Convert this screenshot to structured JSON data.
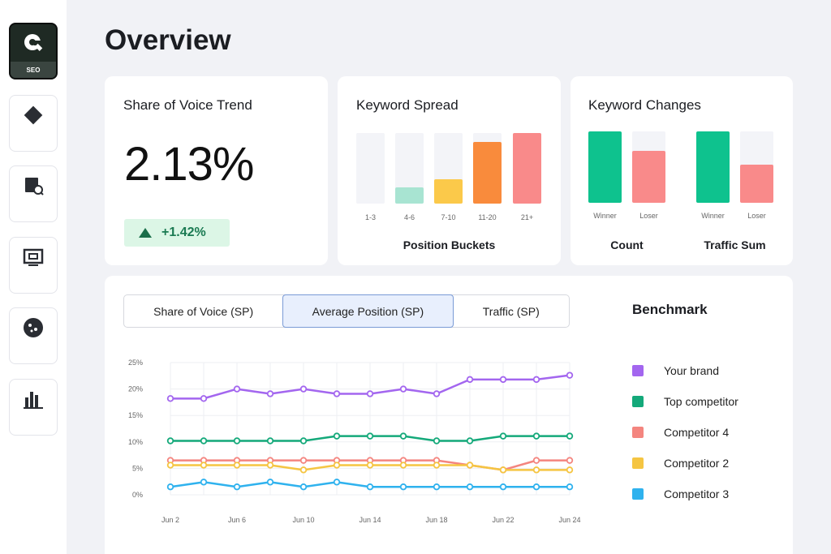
{
  "sidebar": {
    "items": [
      {
        "label": "SEO",
        "icon": "seo-logo-icon",
        "active": true
      },
      {
        "label": "",
        "icon": "diamond-icon"
      },
      {
        "label": "",
        "icon": "search-doc-icon"
      },
      {
        "label": "",
        "icon": "monitor-icon"
      },
      {
        "label": "",
        "icon": "globe-icon"
      },
      {
        "label": "",
        "icon": "bar-chart-icon"
      }
    ]
  },
  "page": {
    "title": "Overview"
  },
  "share_card": {
    "title": "Share of Voice Trend",
    "value": "2.13%",
    "delta": "+1.42%"
  },
  "spread_card": {
    "title": "Keyword Spread",
    "group_label": "Position Buckets",
    "buckets": [
      {
        "label": "1-3",
        "fill": 0.0,
        "color": "#f3f4f8"
      },
      {
        "label": "4-6",
        "fill": 0.23,
        "color": "#a8e4d2"
      },
      {
        "label": "7-10",
        "fill": 0.34,
        "color": "#fbc94a"
      },
      {
        "label": "11-20",
        "fill": 0.87,
        "color": "#f98b3c"
      },
      {
        "label": "21+",
        "fill": 1.0,
        "color": "#f98a8a"
      }
    ]
  },
  "changes_card": {
    "title": "Keyword Changes",
    "groups": [
      {
        "label": "Count",
        "bars": [
          {
            "label": "Winner",
            "fill": 1.0,
            "color": "#0ec28e"
          },
          {
            "label": "Loser",
            "fill": 0.73,
            "color": "#f98a8a"
          }
        ]
      },
      {
        "label": "Traffic Sum",
        "bars": [
          {
            "label": "Winner",
            "fill": 1.0,
            "color": "#0ec28e"
          },
          {
            "label": "Loser",
            "fill": 0.53,
            "color": "#f98a8a"
          }
        ]
      }
    ]
  },
  "tabs": [
    {
      "label": "Share of Voice (SP)",
      "selected": false
    },
    {
      "label": "Average Position (SP)",
      "selected": true
    },
    {
      "label": "Traffic (SP)",
      "selected": false
    }
  ],
  "legend": {
    "title": "Benchmark"
  },
  "chart_data": {
    "type": "line",
    "title": "",
    "xlabel": "",
    "ylabel": "",
    "ylim": [
      0,
      25
    ],
    "yticks": [
      "0%",
      "5%",
      "10%",
      "15%",
      "20%",
      "25%"
    ],
    "x": [
      "Jun 2",
      "Jun 3",
      "Jun 4",
      "Jun 5",
      "Jun 6",
      "Jun 7",
      "Jun 8",
      "Jun 9",
      "Jun 10",
      "Jun 11",
      "Jun 12",
      "Jun 13",
      "Jun 14",
      "Jun 15",
      "Jun 16",
      "Jun 17",
      "Jun 18",
      "Jun 19",
      "Jun 20",
      "Jun 21",
      "Jun 22",
      "Jun 23",
      "Jun 24"
    ],
    "xtick_labels": [
      "Jun 2",
      "Jun 6",
      "Jun 10",
      "Jun 14",
      "Jun 18",
      "Jun 22",
      "Jun 24"
    ],
    "grid": true,
    "legend_position": "right",
    "series": [
      {
        "name": "Your brand",
        "color": "#a366ef",
        "points": [
          [
            0,
            18.2
          ],
          [
            2,
            18.2
          ],
          [
            4,
            20.0
          ],
          [
            6,
            19.1
          ],
          [
            8,
            20.0
          ],
          [
            10,
            19.1
          ],
          [
            12,
            19.1
          ],
          [
            14,
            20.0
          ],
          [
            16,
            19.1
          ],
          [
            18,
            21.8
          ],
          [
            20,
            21.8
          ],
          [
            22,
            21.8
          ],
          [
            24,
            22.6
          ]
        ]
      },
      {
        "name": "Top competitor",
        "color": "#14a97a",
        "points": [
          [
            0,
            10.2
          ],
          [
            2,
            10.2
          ],
          [
            4,
            10.2
          ],
          [
            6,
            10.2
          ],
          [
            8,
            10.2
          ],
          [
            10,
            11.1
          ],
          [
            12,
            11.1
          ],
          [
            14,
            11.1
          ],
          [
            16,
            10.2
          ],
          [
            18,
            10.2
          ],
          [
            20,
            11.1
          ],
          [
            22,
            11.1
          ],
          [
            24,
            11.1
          ]
        ]
      },
      {
        "name": "Competitor 4",
        "color": "#f4857f",
        "points": [
          [
            0,
            6.5
          ],
          [
            2,
            6.5
          ],
          [
            4,
            6.5
          ],
          [
            6,
            6.5
          ],
          [
            8,
            6.5
          ],
          [
            10,
            6.5
          ],
          [
            12,
            6.5
          ],
          [
            14,
            6.5
          ],
          [
            16,
            6.5
          ],
          [
            18,
            5.6
          ],
          [
            20,
            4.7
          ],
          [
            22,
            6.5
          ],
          [
            24,
            6.5
          ]
        ]
      },
      {
        "name": "Competitor 2",
        "color": "#f5c542",
        "points": [
          [
            0,
            5.6
          ],
          [
            2,
            5.6
          ],
          [
            4,
            5.6
          ],
          [
            6,
            5.6
          ],
          [
            8,
            4.7
          ],
          [
            10,
            5.6
          ],
          [
            12,
            5.6
          ],
          [
            14,
            5.6
          ],
          [
            16,
            5.6
          ],
          [
            18,
            5.6
          ],
          [
            20,
            4.7
          ],
          [
            22,
            4.7
          ],
          [
            24,
            4.7
          ]
        ]
      },
      {
        "name": "Competitor 3",
        "color": "#2fb2ee",
        "points": [
          [
            0,
            1.5
          ],
          [
            2,
            2.4
          ],
          [
            4,
            1.5
          ],
          [
            6,
            2.4
          ],
          [
            8,
            1.5
          ],
          [
            10,
            2.4
          ],
          [
            12,
            1.5
          ],
          [
            14,
            1.5
          ],
          [
            16,
            1.5
          ],
          [
            18,
            1.5
          ],
          [
            20,
            1.5
          ],
          [
            22,
            1.5
          ],
          [
            24,
            1.5
          ]
        ]
      }
    ]
  }
}
